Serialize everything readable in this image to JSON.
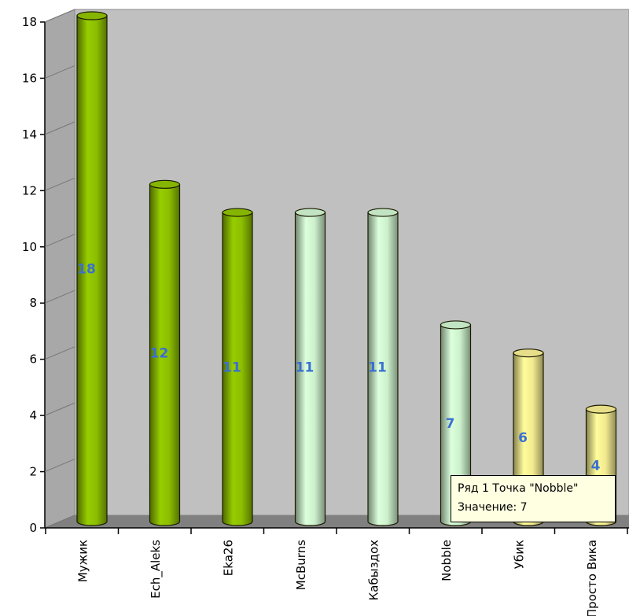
{
  "colors": {
    "wall": "#c0c0c0",
    "floor": "#808080",
    "green_dark": "#8cbe00",
    "green_light": "#ccf0cc",
    "yellow": "#f2ea90"
  },
  "chart_data": {
    "type": "bar",
    "style": "3d-cylinder",
    "categories": [
      "Мужик",
      "Ech_Aleks",
      "Eka26",
      "McBurns",
      "Кабыздох",
      "Nobble",
      "Убик",
      "Просто Вика"
    ],
    "values": [
      18,
      12,
      11,
      11,
      11,
      7,
      6,
      4
    ],
    "bar_colors": [
      "green_dark",
      "green_dark",
      "green_dark",
      "green_light",
      "green_light",
      "green_light",
      "yellow",
      "yellow"
    ],
    "ylim": [
      0,
      18
    ],
    "yticks": [
      0,
      2,
      4,
      6,
      8,
      10,
      12,
      14,
      16,
      18
    ],
    "grid": false,
    "title": "",
    "xlabel": "",
    "ylabel": ""
  },
  "tooltip": {
    "line1": "Ряд 1 Точка \"Nobble\"",
    "line2": "Значение: 7"
  }
}
